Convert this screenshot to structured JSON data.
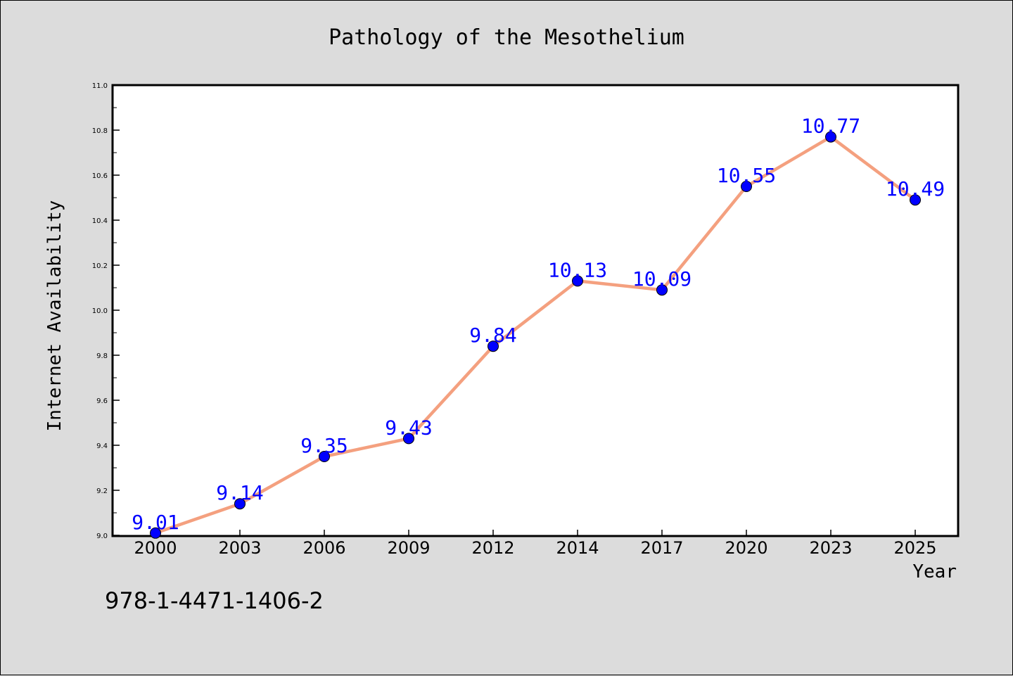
{
  "chart_data": {
    "type": "line",
    "title": "Pathology of the Mesothelium",
    "xlabel": "Year",
    "ylabel": "Internet Availability",
    "categories": [
      "2000",
      "2003",
      "2006",
      "2009",
      "2012",
      "2014",
      "2017",
      "2020",
      "2023",
      "2025"
    ],
    "series": [
      {
        "values": [
          9.01,
          9.14,
          9.35,
          9.43,
          9.84,
          10.13,
          10.09,
          10.55,
          10.77,
          10.49
        ]
      }
    ],
    "data_labels": [
      "9.01",
      "9.14",
      "9.35",
      "9.43",
      "9.84",
      "10.13",
      "10.09",
      "10.55",
      "10.77",
      "10.49"
    ],
    "ylim": [
      9.0,
      11.0
    ],
    "yticks": [
      "9.0",
      "9.2",
      "9.4",
      "9.6",
      "9.8",
      "10.0",
      "10.2",
      "10.4",
      "10.6",
      "10.8",
      "11.0"
    ],
    "grid": false,
    "legend": "none",
    "colors": {
      "line": "#f4a07f",
      "marker": "#0000ff",
      "label": "#0000ff",
      "background": "#dcdcdc",
      "plot_background": "#ffffff"
    }
  },
  "footer": {
    "isbn": "978-1-4471-1406-2"
  }
}
